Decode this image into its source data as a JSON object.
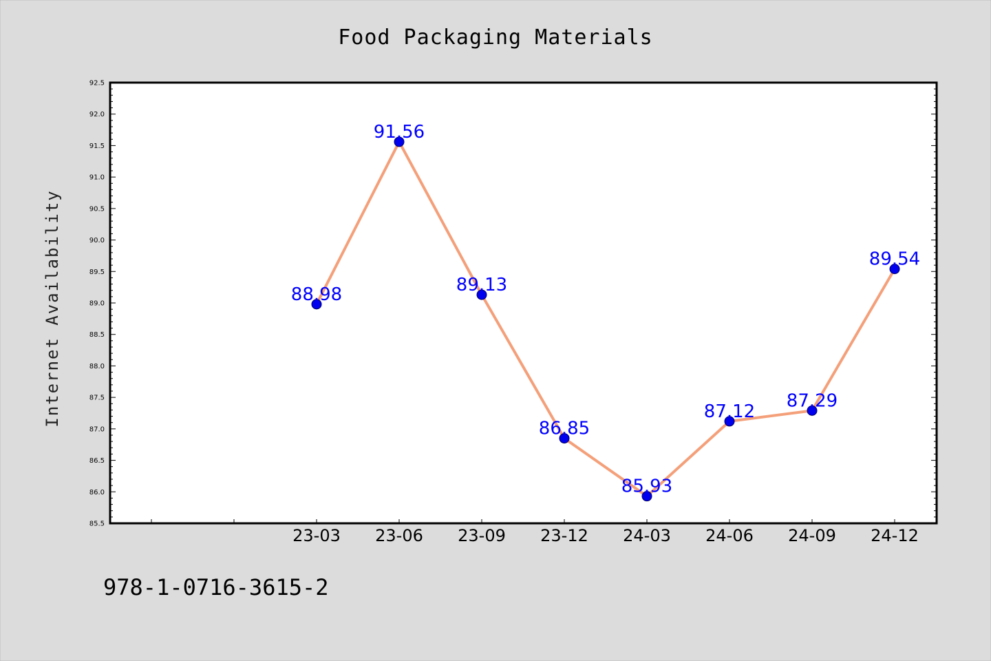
{
  "chart_data": {
    "type": "line",
    "title": "Food Packaging Materials",
    "xlabel": "",
    "ylabel": "Internet Availability",
    "categories": [
      "23-03",
      "23-06",
      "23-09",
      "23-12",
      "24-03",
      "24-06",
      "24-09",
      "24-12"
    ],
    "series": [
      {
        "values": [
          88.98,
          91.56,
          89.13,
          86.85,
          85.93,
          87.12,
          87.29,
          89.54
        ]
      }
    ],
    "data_labels": [
      "88.98",
      "91.56",
      "89.13",
      "86.85",
      "85.93",
      "87.12",
      "87.29",
      "89.54"
    ],
    "ylim": [
      85.5,
      92.5
    ],
    "yticks": [
      "85.5",
      "86.0",
      "86.5",
      "87.0",
      "87.5",
      "88.0",
      "88.5",
      "89.0",
      "89.5",
      "90.0",
      "90.5",
      "91.0",
      "91.5",
      "92.0",
      "92.5"
    ],
    "grid": false,
    "legend": "none",
    "colors": {
      "line": "#f4a07a",
      "marker": "#0000ee",
      "label": "#0000ff",
      "plot_bg": "#ffffff",
      "page_bg": "#dcdcdc"
    }
  },
  "footer_text": "978-1-0716-3615-2"
}
